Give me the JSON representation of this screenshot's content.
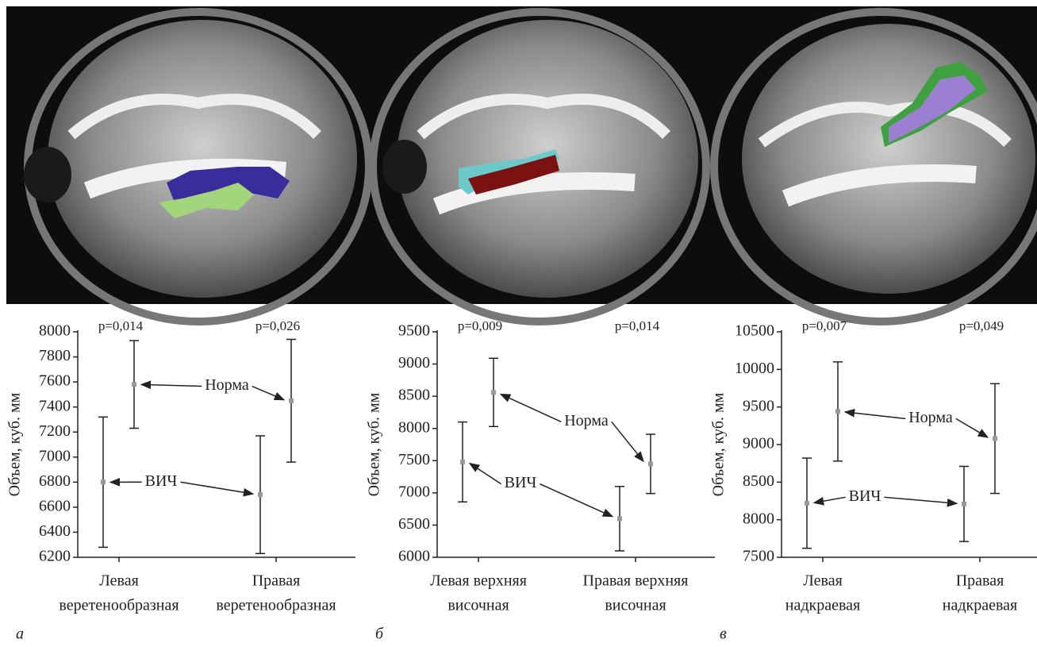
{
  "chart_data": [
    {
      "type": "errorbar",
      "panel": "а",
      "ylabel": "Объем, куб. мм",
      "categories": [
        [
          "Левая",
          "веретенообразная"
        ],
        [
          "Правая",
          "веретенообразная"
        ]
      ],
      "annotations": [
        "p=0,014",
        "p=0,026"
      ],
      "series": [
        {
          "name": "ВИЧ",
          "color": "#999999",
          "values": [
            6800,
            6700
          ],
          "errors": [
            520,
            470
          ]
        },
        {
          "name": "Норма",
          "color": "#999999",
          "values": [
            7580,
            7450
          ],
          "errors": [
            350,
            490
          ]
        }
      ],
      "ylim": [
        6200,
        8000
      ],
      "yticks": [
        6200,
        6400,
        6600,
        6800,
        7000,
        7200,
        7400,
        7600,
        7800,
        8000
      ]
    },
    {
      "type": "errorbar",
      "panel": "б",
      "ylabel": "Объем, куб. мм",
      "categories": [
        [
          "Левая верхняя",
          "височная"
        ],
        [
          "Правая верхняя",
          "височная"
        ]
      ],
      "annotations": [
        "p=0,009",
        "p=0,014"
      ],
      "series": [
        {
          "name": "ВИЧ",
          "color": "#999999",
          "values": [
            7480,
            6600
          ],
          "errors": [
            620,
            500
          ]
        },
        {
          "name": "Норма",
          "color": "#999999",
          "values": [
            8560,
            7450
          ],
          "errors": [
            530,
            460
          ]
        }
      ],
      "ylim": [
        6000,
        9500
      ],
      "yticks": [
        6000,
        6500,
        7000,
        7500,
        8000,
        8500,
        9000,
        9500
      ]
    },
    {
      "type": "errorbar",
      "panel": "в",
      "ylabel": "Объем, куб. мм",
      "categories": [
        [
          "Левая",
          "надкраевая"
        ],
        [
          "Правая",
          "надкраевая"
        ]
      ],
      "annotations": [
        "p=0,007",
        "p=0,049"
      ],
      "series": [
        {
          "name": "ВИЧ",
          "color": "#999999",
          "values": [
            8220,
            8210
          ],
          "errors": [
            600,
            500
          ]
        },
        {
          "name": "Норма",
          "color": "#999999",
          "values": [
            9440,
            9080
          ],
          "errors": [
            660,
            730
          ]
        }
      ],
      "ylim": [
        7500,
        10500
      ],
      "yticks": [
        7500,
        8000,
        8500,
        9000,
        9500,
        10000,
        10500
      ]
    }
  ]
}
